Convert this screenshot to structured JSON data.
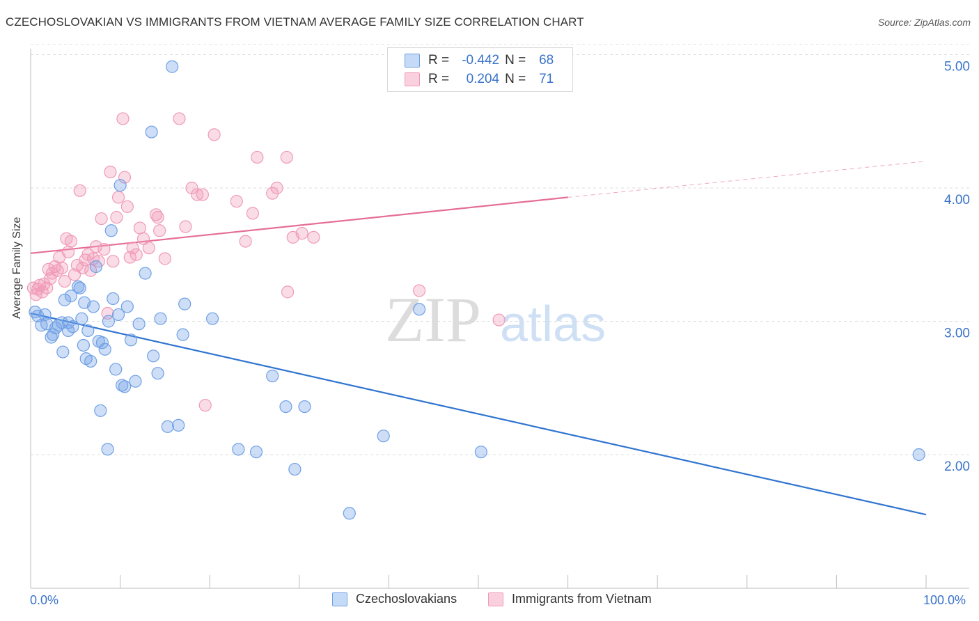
{
  "title": "CZECHOSLOVAKIAN VS IMMIGRANTS FROM VIETNAM AVERAGE FAMILY SIZE CORRELATION CHART",
  "source": "Source: ZipAtlas.com",
  "watermark": {
    "zip": "ZIP",
    "atlas": "atlas"
  },
  "legend_top": {
    "rows": [
      {
        "r_label": "R =",
        "r_value": "-0.442",
        "n_label": "N =",
        "n_value": "68",
        "color": "#6fa0e6"
      },
      {
        "r_label": "R =",
        "r_value": "0.204",
        "n_label": "N =",
        "n_value": "71",
        "color": "#f09ab8"
      }
    ]
  },
  "chart_data": {
    "type": "scatter",
    "title": "CZECHOSLOVAKIAN VS IMMIGRANTS FROM VIETNAM AVERAGE FAMILY SIZE CORRELATION CHART",
    "xlabel": "",
    "ylabel": "Average Family Size",
    "xlim": [
      0,
      100
    ],
    "ylim": [
      1.0,
      5.1
    ],
    "x_tick_labels": [
      "0.0%",
      "100.0%"
    ],
    "y_ticks": [
      2.0,
      3.0,
      4.0,
      5.0
    ],
    "y_tick_labels": [
      "2.00",
      "3.00",
      "4.00",
      "5.00"
    ],
    "grid": true,
    "legend_position": "bottom",
    "series": [
      {
        "name": "Czechoslovakians",
        "color": "#6fa0e6",
        "trend_color": "#2f74d0",
        "trend": {
          "x": [
            0,
            100
          ],
          "y": [
            3.06,
            1.55
          ]
        },
        "points": [
          [
            0.5,
            3.07
          ],
          [
            0.8,
            3.04
          ],
          [
            1.2,
            2.97
          ],
          [
            1.6,
            3.05
          ],
          [
            1.8,
            2.98
          ],
          [
            2.3,
            2.88
          ],
          [
            2.5,
            2.9
          ],
          [
            2.8,
            2.95
          ],
          [
            3.1,
            2.97
          ],
          [
            3.5,
            2.99
          ],
          [
            3.6,
            2.77
          ],
          [
            3.8,
            3.16
          ],
          [
            4.2,
            2.99
          ],
          [
            4.2,
            2.93
          ],
          [
            4.5,
            3.19
          ],
          [
            4.7,
            2.96
          ],
          [
            5.3,
            3.26
          ],
          [
            5.5,
            3.25
          ],
          [
            5.7,
            3.02
          ],
          [
            5.9,
            2.82
          ],
          [
            6.0,
            3.14
          ],
          [
            6.2,
            2.72
          ],
          [
            6.4,
            2.93
          ],
          [
            6.7,
            2.7
          ],
          [
            7.0,
            3.11
          ],
          [
            7.3,
            3.41
          ],
          [
            7.6,
            2.85
          ],
          [
            7.8,
            2.33
          ],
          [
            8.0,
            2.84
          ],
          [
            8.3,
            2.79
          ],
          [
            8.6,
            2.04
          ],
          [
            8.7,
            3.0
          ],
          [
            9.0,
            3.68
          ],
          [
            9.2,
            3.17
          ],
          [
            9.5,
            2.64
          ],
          [
            9.8,
            3.05
          ],
          [
            10.0,
            4.02
          ],
          [
            10.2,
            2.52
          ],
          [
            10.5,
            2.51
          ],
          [
            10.8,
            3.11
          ],
          [
            11.2,
            2.86
          ],
          [
            11.7,
            2.55
          ],
          [
            12.1,
            2.98
          ],
          [
            12.8,
            3.36
          ],
          [
            13.5,
            4.42
          ],
          [
            13.7,
            2.74
          ],
          [
            14.2,
            2.61
          ],
          [
            14.5,
            3.02
          ],
          [
            15.3,
            2.21
          ],
          [
            15.8,
            4.91
          ],
          [
            16.5,
            2.22
          ],
          [
            17.0,
            2.9
          ],
          [
            17.2,
            3.13
          ],
          [
            20.3,
            3.02
          ],
          [
            23.2,
            2.04
          ],
          [
            25.2,
            2.02
          ],
          [
            27.0,
            2.59
          ],
          [
            28.5,
            2.36
          ],
          [
            29.5,
            1.89
          ],
          [
            30.6,
            2.36
          ],
          [
            35.6,
            1.56
          ],
          [
            39.4,
            2.14
          ],
          [
            43.4,
            3.09
          ],
          [
            50.3,
            2.02
          ],
          [
            99.2,
            2.0
          ]
        ]
      },
      {
        "name": "Immigrants from Vietnam",
        "color": "#f09ab8",
        "trend_color": "#e56e98",
        "trend": {
          "x": [
            0,
            60
          ],
          "y": [
            3.51,
            3.93
          ]
        },
        "trend_extension": {
          "x": [
            60,
            100
          ],
          "y": [
            3.93,
            4.2
          ]
        },
        "points": [
          [
            0.3,
            3.25
          ],
          [
            0.6,
            3.2
          ],
          [
            0.8,
            3.24
          ],
          [
            1.0,
            3.27
          ],
          [
            1.3,
            3.22
          ],
          [
            1.5,
            3.28
          ],
          [
            1.8,
            3.25
          ],
          [
            2.0,
            3.39
          ],
          [
            2.2,
            3.32
          ],
          [
            2.4,
            3.36
          ],
          [
            2.7,
            3.41
          ],
          [
            3.0,
            3.38
          ],
          [
            3.2,
            3.48
          ],
          [
            3.5,
            3.4
          ],
          [
            3.8,
            3.3
          ],
          [
            4.0,
            3.62
          ],
          [
            4.2,
            3.52
          ],
          [
            4.5,
            3.6
          ],
          [
            4.9,
            3.35
          ],
          [
            5.2,
            3.42
          ],
          [
            5.5,
            3.98
          ],
          [
            5.8,
            3.4
          ],
          [
            6.1,
            3.46
          ],
          [
            6.4,
            3.5
          ],
          [
            6.7,
            3.38
          ],
          [
            7.0,
            3.47
          ],
          [
            7.3,
            3.56
          ],
          [
            7.6,
            3.45
          ],
          [
            7.9,
            3.77
          ],
          [
            8.2,
            3.54
          ],
          [
            8.6,
            3.06
          ],
          [
            8.9,
            4.12
          ],
          [
            9.2,
            3.45
          ],
          [
            9.6,
            3.78
          ],
          [
            9.8,
            3.93
          ],
          [
            10.3,
            4.52
          ],
          [
            10.5,
            4.08
          ],
          [
            10.8,
            3.86
          ],
          [
            11.1,
            3.48
          ],
          [
            11.4,
            3.55
          ],
          [
            11.8,
            3.5
          ],
          [
            12.2,
            3.7
          ],
          [
            12.6,
            3.62
          ],
          [
            13.2,
            3.55
          ],
          [
            14.0,
            3.8
          ],
          [
            14.2,
            3.78
          ],
          [
            14.4,
            3.68
          ],
          [
            15.0,
            3.47
          ],
          [
            16.6,
            4.52
          ],
          [
            17.3,
            3.71
          ],
          [
            18.0,
            4.0
          ],
          [
            18.6,
            3.95
          ],
          [
            19.2,
            3.95
          ],
          [
            19.5,
            2.37
          ],
          [
            20.5,
            4.4
          ],
          [
            23.0,
            3.9
          ],
          [
            24.0,
            3.6
          ],
          [
            24.8,
            3.81
          ],
          [
            25.3,
            4.23
          ],
          [
            27.0,
            3.96
          ],
          [
            27.5,
            4.0
          ],
          [
            28.6,
            4.23
          ],
          [
            28.7,
            3.22
          ],
          [
            29.3,
            3.63
          ],
          [
            30.3,
            3.66
          ],
          [
            31.6,
            3.63
          ],
          [
            43.4,
            3.23
          ],
          [
            52.3,
            3.01
          ]
        ]
      }
    ]
  }
}
